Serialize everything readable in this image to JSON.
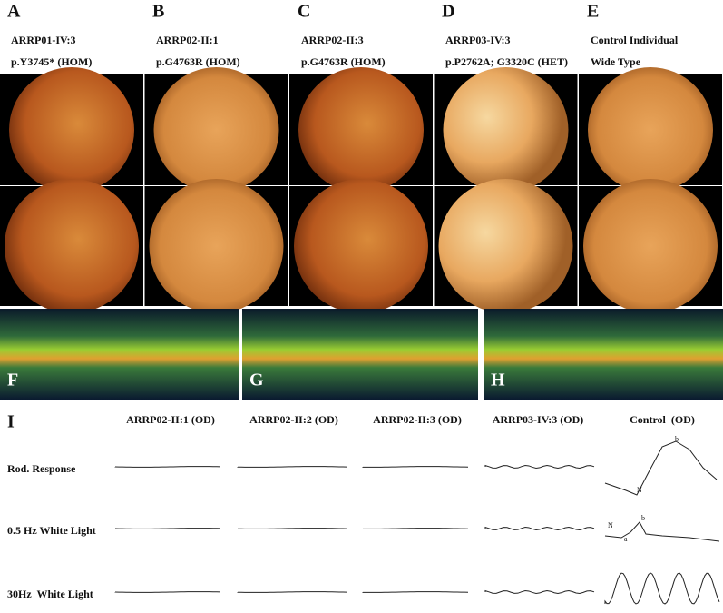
{
  "panels": [
    {
      "letter": "A",
      "subject": "ARRP01-IV:3",
      "variant": "p.Y3745* (HOM)"
    },
    {
      "letter": "B",
      "subject": "ARRP02-II:1",
      "variant": "p.G4763R (HOM)"
    },
    {
      "letter": "C",
      "subject": "ARRP02-II:3",
      "variant": "p.G4763R (HOM)"
    },
    {
      "letter": "D",
      "subject": "ARRP03-IV:3",
      "variant": "p.P2762A; G3320C (HET)"
    },
    {
      "letter": "E",
      "subject": "Control Individual",
      "variant": "Wide Type"
    }
  ],
  "oct_panels": [
    "F",
    "G",
    "H"
  ],
  "erg": {
    "letter": "I",
    "columns": [
      "ARRP02-II:1 (OD)",
      "ARRP02-II:2 (OD)",
      "ARRP02-II:3 (OD)",
      "ARRP03-IV:3 (OD)",
      "Control  (OD)"
    ],
    "rows": [
      "Rod. Response",
      "0.5 Hz White Light",
      "30Hz  White Light"
    ],
    "waveform_labels": [
      "N",
      "b",
      "N",
      "a",
      "b"
    ]
  }
}
